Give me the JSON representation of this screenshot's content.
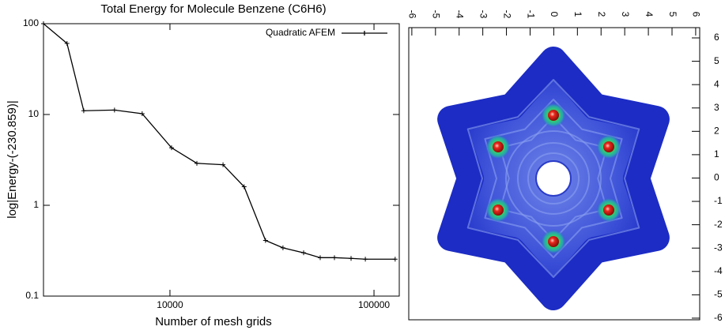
{
  "chart_data": [
    {
      "type": "line",
      "title": "Total Energy for Molecule Benzene (C6H6)",
      "x_label": "Number of mesh grids",
      "y_label": "log|Energy-(-230.859)|",
      "x": [
        2400,
        3130,
        3780,
        5350,
        7310,
        10180,
        13550,
        18200,
        23100,
        29400,
        35800,
        45200,
        54500,
        64000,
        77200,
        90700,
        127000
      ],
      "series": [
        {
          "name": "Quadratic AFEM",
          "color": "#000000",
          "values": [
            100,
            60.6,
            11.0,
            11.2,
            10.2,
            4.3,
            2.9,
            2.8,
            1.6,
            0.41,
            0.34,
            0.3,
            0.265,
            0.265,
            0.26,
            0.255,
            0.255
          ]
        }
      ],
      "x_log": true,
      "y_log": true,
      "xlim": [
        2400,
        133000
      ],
      "ylim": [
        0.1,
        100
      ],
      "xticks": [
        10000,
        100000
      ],
      "yticks": [
        0.1,
        1,
        10,
        100
      ],
      "legend": "top-right",
      "grid": false
    },
    {
      "type": "surface",
      "xlim": [
        -6.13,
        6.17
      ],
      "ylim": [
        -6.07,
        6.44
      ],
      "xticks": [
        -6,
        -5,
        -4,
        -3,
        -2,
        -1,
        0,
        1,
        2,
        3,
        4,
        5,
        6
      ],
      "yticks": [
        -6,
        -5,
        -4,
        -3,
        -2,
        -1,
        0,
        1,
        2,
        3,
        4,
        5,
        6
      ]
    }
  ]
}
